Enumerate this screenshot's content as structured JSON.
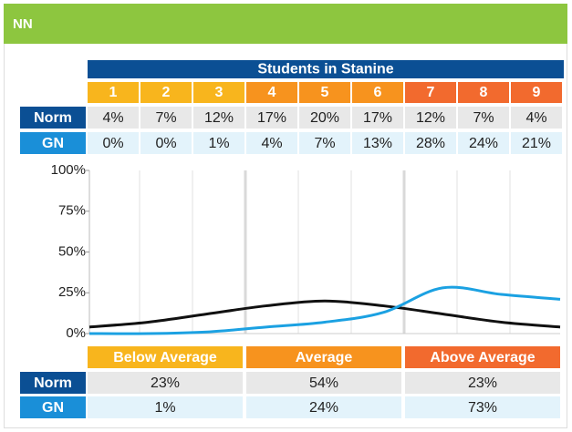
{
  "header": {
    "title": "NN",
    "color": "#8dc63f"
  },
  "chart_data": {
    "type": "line",
    "title": "Students in Stanine",
    "categories": [
      "1",
      "2",
      "3",
      "4",
      "5",
      "6",
      "7",
      "8",
      "9"
    ],
    "category_colors": [
      "#f8b51d",
      "#f8b51d",
      "#f8b51d",
      "#f7931e",
      "#f7931e",
      "#f7931e",
      "#f26a2e",
      "#f26a2e",
      "#f26a2e"
    ],
    "series": [
      {
        "name": "Norm",
        "color": "#111111",
        "label_color": "#0b4f94",
        "cell_color": "#e8e8e8",
        "values": [
          4,
          7,
          12,
          17,
          20,
          17,
          12,
          7,
          4
        ],
        "value_labels": [
          "4%",
          "7%",
          "12%",
          "17%",
          "20%",
          "17%",
          "12%",
          "7%",
          "4%"
        ]
      },
      {
        "name": "GN",
        "color": "#1ba1e2",
        "label_color": "#1a8fd8",
        "cell_color": "#e3f3fb",
        "values": [
          0,
          0,
          1,
          4,
          7,
          13,
          28,
          24,
          21
        ],
        "value_labels": [
          "0%",
          "0%",
          "1%",
          "4%",
          "7%",
          "13%",
          "28%",
          "24%",
          "21%"
        ]
      }
    ],
    "ylim": [
      0,
      100
    ],
    "yticks": [
      {
        "value": 0,
        "label": "0%"
      },
      {
        "value": 25,
        "label": "25%"
      },
      {
        "value": 50,
        "label": "50%"
      },
      {
        "value": 75,
        "label": "75%"
      },
      {
        "value": 100,
        "label": "100%"
      }
    ],
    "grid": true
  },
  "summary": {
    "columns": [
      {
        "label": "Below Average",
        "color": "#f8b51d"
      },
      {
        "label": "Average",
        "color": "#f7931e"
      },
      {
        "label": "Above Average",
        "color": "#f26a2e"
      }
    ],
    "rows": [
      {
        "name": "Norm",
        "label_color": "#0b4f94",
        "cell_color": "#e8e8e8",
        "cells": [
          "23%",
          "54%",
          "23%"
        ]
      },
      {
        "name": "GN",
        "label_color": "#1a8fd8",
        "cell_color": "#e3f3fb",
        "cells": [
          "1%",
          "24%",
          "73%"
        ]
      }
    ]
  }
}
